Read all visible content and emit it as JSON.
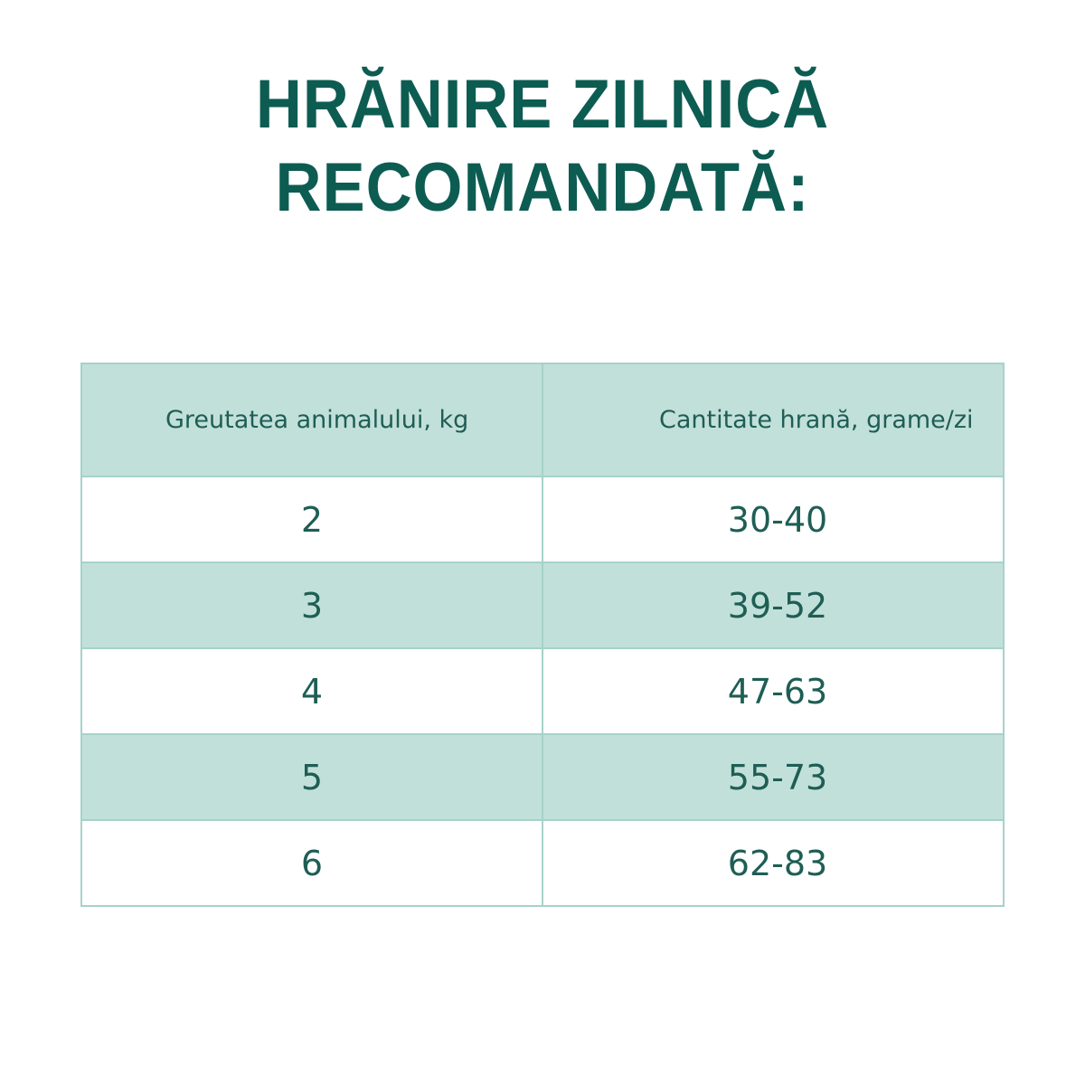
{
  "title": {
    "line1": "HRĂNIRE ZILNICĂ",
    "line2": "RECOMANDATĂ:"
  },
  "table": {
    "headers": [
      "Greutatea animalului, kg",
      "Cantitate hrană, grame/zi"
    ],
    "rows": [
      [
        "2",
        "30-40"
      ],
      [
        "3",
        "39-52"
      ],
      [
        "4",
        "47-63"
      ],
      [
        "5",
        "55-73"
      ],
      [
        "6",
        "62-83"
      ]
    ]
  },
  "colors": {
    "title": "#0d5c52",
    "text": "#1e5e55",
    "row_fill": "#c2e0da",
    "border": "#a6d2c9"
  }
}
